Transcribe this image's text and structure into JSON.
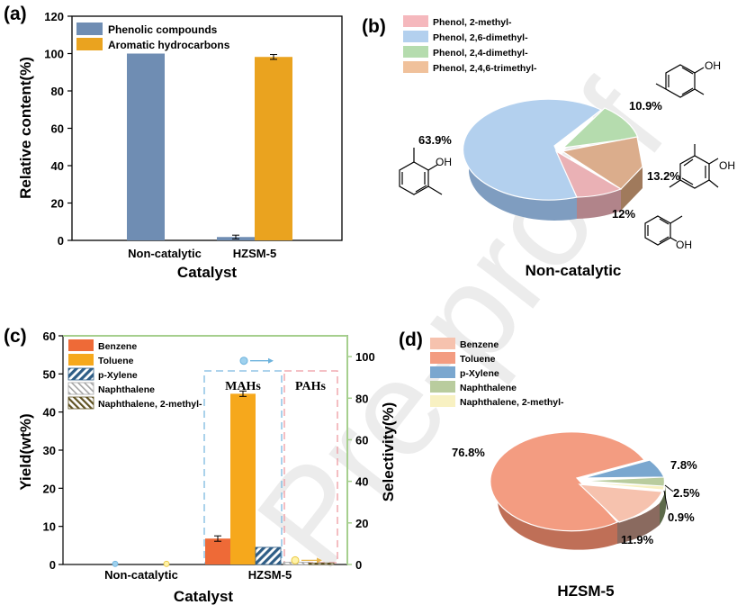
{
  "colors": {
    "phenolic": "#6f8db3",
    "aromatic": "#eaa31f",
    "pie_b": [
      "#f5b8bd",
      "#b3d0ee",
      "#b5dcae",
      "#f0c19b"
    ],
    "benzene": "#ee6a37",
    "toluene": "#f6a81c",
    "pxylene": "#2e5d86",
    "naphthalene": "#a5a5a5",
    "naph2m": "#5f5222",
    "pie_d": [
      "#f6c2ae",
      "#f39c81",
      "#7aa7cf",
      "#b9cc9e",
      "#f8f1c2"
    ]
  },
  "watermark": "Pre-proof",
  "chart_data": [
    {
      "panel": "(a)",
      "type": "bar",
      "categories": [
        "Non-catalytic",
        "HZSM-5"
      ],
      "series": [
        {
          "name": "Phenolic compounds",
          "values": [
            100,
            1.8
          ],
          "errors": [
            0,
            1.0
          ]
        },
        {
          "name": "Aromatic hydrocarbons",
          "values": [
            0,
            98.2
          ],
          "errors": [
            0,
            1.3
          ]
        }
      ],
      "xlabel": "Catalyst",
      "ylabel": "Relative content(%)",
      "ylim": [
        0,
        120
      ],
      "yticks": [
        "0",
        "20",
        "40",
        "60",
        "80",
        "100",
        "120"
      ],
      "legend": "top-left"
    },
    {
      "panel": "(b)",
      "type": "pie",
      "title": "Non-catalytic",
      "labels": [
        "Phenol, 2-methyl-",
        "Phenol, 2,6-dimethyl-",
        "Phenol, 2,4-dimethyl-",
        "Phenol, 2,4,6-trimethyl-"
      ],
      "values": [
        12,
        63.9,
        10.9,
        13.2
      ],
      "value_labels": [
        "12%",
        "63.9%",
        "10.9%",
        "13.2%"
      ],
      "structure_labels": [
        "OH",
        "OH",
        "OH",
        "OH"
      ]
    },
    {
      "panel": "(c)",
      "type": "bar",
      "categories": [
        "Non-catalytic",
        "HZSM-5"
      ],
      "series": [
        {
          "name": "Benzene",
          "values": [
            0,
            6.8
          ]
        },
        {
          "name": "Toluene",
          "values": [
            0,
            44.8
          ]
        },
        {
          "name": "p-Xylene",
          "values": [
            0,
            4.5
          ]
        },
        {
          "name": "Naphthalene",
          "values": [
            0,
            0.6
          ]
        },
        {
          "name": "Naphthalene, 2-methyl-",
          "values": [
            0,
            0.4
          ]
        }
      ],
      "selectivity": {
        "MAHs": 98,
        "PAHs": 2
      },
      "xlabel": "Catalyst",
      "ylabel": "Yield(wt%)",
      "y2label": "Selectivity(%)",
      "ylim": [
        0,
        60
      ],
      "y2lim": [
        0,
        110
      ],
      "yticks": [
        "0",
        "10",
        "20",
        "30",
        "40",
        "50",
        "60"
      ],
      "y2ticks": [
        "0",
        "20",
        "40",
        "60",
        "80",
        "100"
      ],
      "annotations": [
        "MAHs",
        "PAHs"
      ],
      "legend": "top-left"
    },
    {
      "panel": "(d)",
      "type": "pie",
      "title": "HZSM-5",
      "labels": [
        "Benzene",
        "Toluene",
        "p-Xylene",
        "Naphthalene",
        "Naphthalene, 2-methyl-"
      ],
      "values": [
        11.9,
        76.8,
        7.8,
        2.5,
        0.9
      ],
      "value_labels": [
        "11.9%",
        "76.8%",
        "7.8%",
        "2.5%",
        "0.9%"
      ]
    }
  ]
}
